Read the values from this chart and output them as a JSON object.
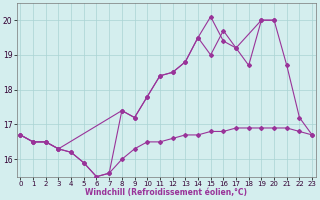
{
  "x": [
    0,
    1,
    2,
    3,
    4,
    5,
    6,
    7,
    8,
    9,
    10,
    11,
    12,
    13,
    14,
    15,
    16,
    17,
    18,
    19,
    20,
    21,
    22,
    23
  ],
  "line_flat": [
    16.7,
    16.5,
    16.5,
    16.3,
    16.2,
    15.9,
    15.5,
    15.6,
    16.0,
    16.3,
    16.5,
    16.5,
    16.6,
    16.7,
    16.7,
    16.8,
    16.8,
    16.9,
    16.9,
    16.9,
    16.9,
    16.9,
    16.8,
    16.7
  ],
  "line_mid_x": [
    0,
    1,
    2,
    3,
    4,
    5,
    6,
    7,
    8,
    9,
    10,
    11,
    12,
    13,
    14,
    15,
    16,
    17,
    18,
    19,
    20
  ],
  "line_mid_y": [
    16.7,
    16.5,
    16.5,
    16.3,
    16.2,
    15.9,
    15.5,
    15.6,
    17.4,
    17.2,
    17.8,
    18.4,
    18.5,
    18.8,
    19.5,
    19.0,
    19.7,
    19.2,
    18.7,
    20.0,
    20.0
  ],
  "line_top_x": [
    0,
    1,
    2,
    3,
    8,
    9,
    10,
    11,
    12,
    13,
    14,
    15,
    16,
    17,
    19,
    20,
    21,
    22,
    23
  ],
  "line_top_y": [
    16.7,
    16.5,
    16.5,
    16.3,
    17.4,
    17.2,
    17.8,
    18.4,
    18.5,
    18.8,
    19.5,
    20.1,
    19.4,
    19.2,
    20.0,
    20.0,
    18.7,
    17.2,
    16.7
  ],
  "bg_color": "#d4eeee",
  "grid_color": "#aad4d4",
  "line_color": "#993399",
  "xlabel": "Windchill (Refroidissement éolien,°C)",
  "ylim_min": 15.5,
  "ylim_max": 20.5,
  "xlim_min": -0.3,
  "xlim_max": 23.3,
  "yticks": [
    16,
    17,
    18,
    19,
    20
  ],
  "xticks": [
    0,
    1,
    2,
    3,
    4,
    5,
    6,
    7,
    8,
    9,
    10,
    11,
    12,
    13,
    14,
    15,
    16,
    17,
    18,
    19,
    20,
    21,
    22,
    23
  ],
  "tick_fontsize": 5,
  "xlabel_fontsize": 5.5,
  "marker": "D",
  "markersize": 2.0,
  "linewidth": 0.8
}
